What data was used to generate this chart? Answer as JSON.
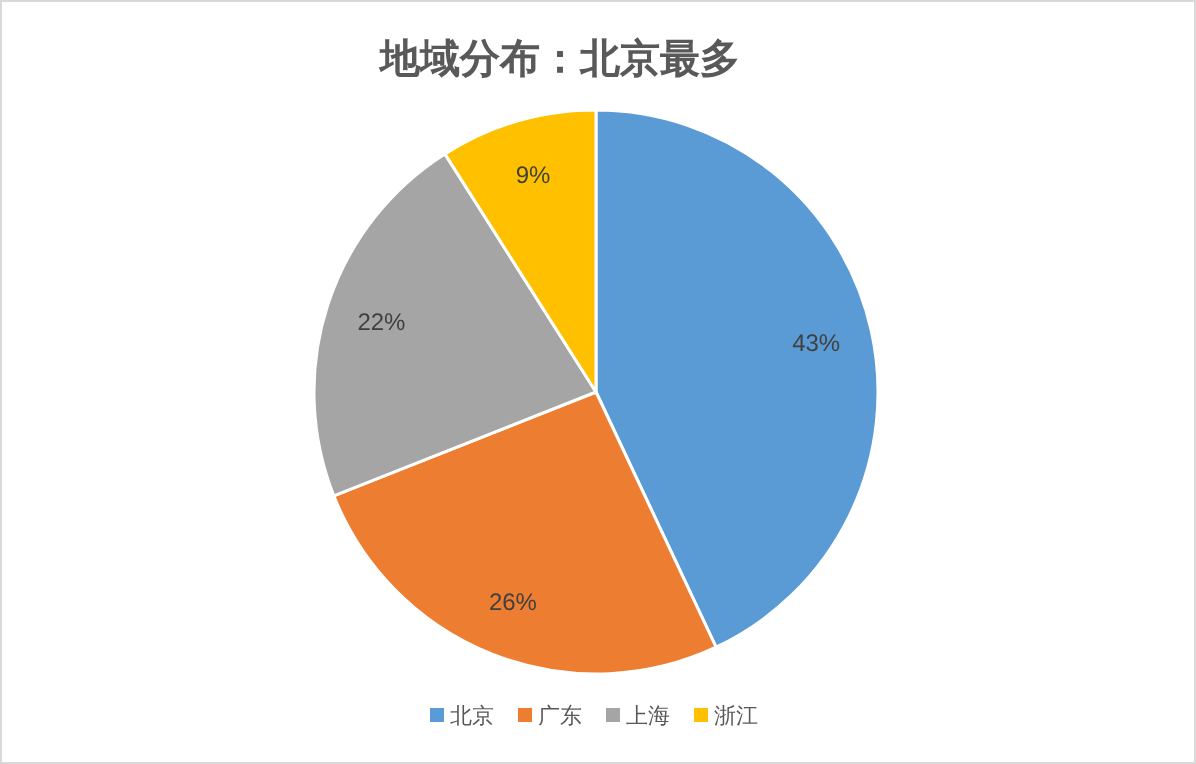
{
  "chart_data": {
    "type": "pie",
    "title": "地域分布：北京最多",
    "categories": [
      "北京",
      "广东",
      "上海",
      "浙江"
    ],
    "values": [
      43,
      26,
      22,
      9
    ],
    "colors": [
      "#5b9bd5",
      "#ed7d31",
      "#a5a5a5",
      "#ffc000"
    ],
    "value_labels": [
      "43%",
      "26%",
      "22%",
      "9%"
    ],
    "legend": "bottom"
  }
}
